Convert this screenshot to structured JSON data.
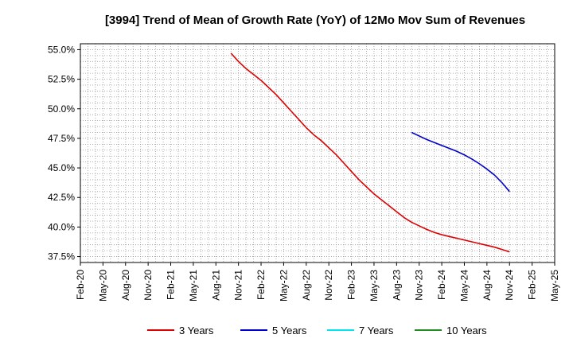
{
  "chart_data": {
    "type": "line",
    "title": "[3994]  Trend of Mean of Growth Rate (YoY) of 12Mo Mov Sum of Revenues",
    "xlabel": "",
    "ylabel": "",
    "x_ticks": [
      "Feb-20",
      "May-20",
      "Aug-20",
      "Nov-20",
      "Feb-21",
      "May-21",
      "Aug-21",
      "Nov-21",
      "Feb-22",
      "May-22",
      "Aug-22",
      "Nov-22",
      "Feb-23",
      "May-23",
      "Aug-23",
      "Nov-23",
      "Feb-24",
      "May-24",
      "Aug-24",
      "Nov-24",
      "Feb-25",
      "May-25"
    ],
    "y_ticks": [
      37.5,
      40.0,
      42.5,
      45.0,
      47.5,
      50.0,
      52.5,
      55.0
    ],
    "y_tick_labels": [
      "37.5%",
      "40.0%",
      "42.5%",
      "45.0%",
      "47.5%",
      "50.0%",
      "52.5%",
      "55.0%"
    ],
    "ylim": [
      37.0,
      55.5
    ],
    "grid": true,
    "series": [
      {
        "name": "3 Years",
        "color": "#dd0000",
        "points": [
          [
            "Oct-21",
            54.7
          ],
          [
            "Nov-21",
            54.0
          ],
          [
            "Dec-21",
            53.4
          ],
          [
            "Jan-22",
            52.9
          ],
          [
            "Feb-22",
            52.4
          ],
          [
            "Mar-22",
            51.8
          ],
          [
            "Apr-22",
            51.2
          ],
          [
            "May-22",
            50.5
          ],
          [
            "Jun-22",
            49.8
          ],
          [
            "Jul-22",
            49.1
          ],
          [
            "Aug-22",
            48.4
          ],
          [
            "Sep-22",
            47.8
          ],
          [
            "Oct-22",
            47.3
          ],
          [
            "Nov-22",
            46.7
          ],
          [
            "Dec-22",
            46.1
          ],
          [
            "Jan-23",
            45.4
          ],
          [
            "Feb-23",
            44.7
          ],
          [
            "Mar-23",
            44.0
          ],
          [
            "Apr-23",
            43.4
          ],
          [
            "May-23",
            42.8
          ],
          [
            "Jun-23",
            42.3
          ],
          [
            "Jul-23",
            41.8
          ],
          [
            "Aug-23",
            41.3
          ],
          [
            "Sep-23",
            40.8
          ],
          [
            "Oct-23",
            40.4
          ],
          [
            "Nov-23",
            40.1
          ],
          [
            "Dec-23",
            39.8
          ],
          [
            "Jan-24",
            39.55
          ],
          [
            "Feb-24",
            39.35
          ],
          [
            "Mar-24",
            39.2
          ],
          [
            "Apr-24",
            39.05
          ],
          [
            "May-24",
            38.9
          ],
          [
            "Jun-24",
            38.75
          ],
          [
            "Jul-24",
            38.6
          ],
          [
            "Aug-24",
            38.45
          ],
          [
            "Sep-24",
            38.3
          ],
          [
            "Oct-24",
            38.1
          ],
          [
            "Nov-24",
            37.9
          ]
        ]
      },
      {
        "name": "5 Years",
        "color": "#0000cc",
        "points": [
          [
            "Oct-23",
            48.0
          ],
          [
            "Nov-23",
            47.7
          ],
          [
            "Dec-23",
            47.4
          ],
          [
            "Jan-24",
            47.15
          ],
          [
            "Feb-24",
            46.9
          ],
          [
            "Mar-24",
            46.65
          ],
          [
            "Apr-24",
            46.4
          ],
          [
            "May-24",
            46.1
          ],
          [
            "Jun-24",
            45.75
          ],
          [
            "Jul-24",
            45.35
          ],
          [
            "Aug-24",
            44.9
          ],
          [
            "Sep-24",
            44.4
          ],
          [
            "Oct-24",
            43.75
          ],
          [
            "Nov-24",
            43.0
          ]
        ]
      },
      {
        "name": "7 Years",
        "color": "#00e5ee",
        "points": []
      },
      {
        "name": "10 Years",
        "color": "#228b22",
        "points": []
      }
    ],
    "legend_position": "bottom"
  }
}
